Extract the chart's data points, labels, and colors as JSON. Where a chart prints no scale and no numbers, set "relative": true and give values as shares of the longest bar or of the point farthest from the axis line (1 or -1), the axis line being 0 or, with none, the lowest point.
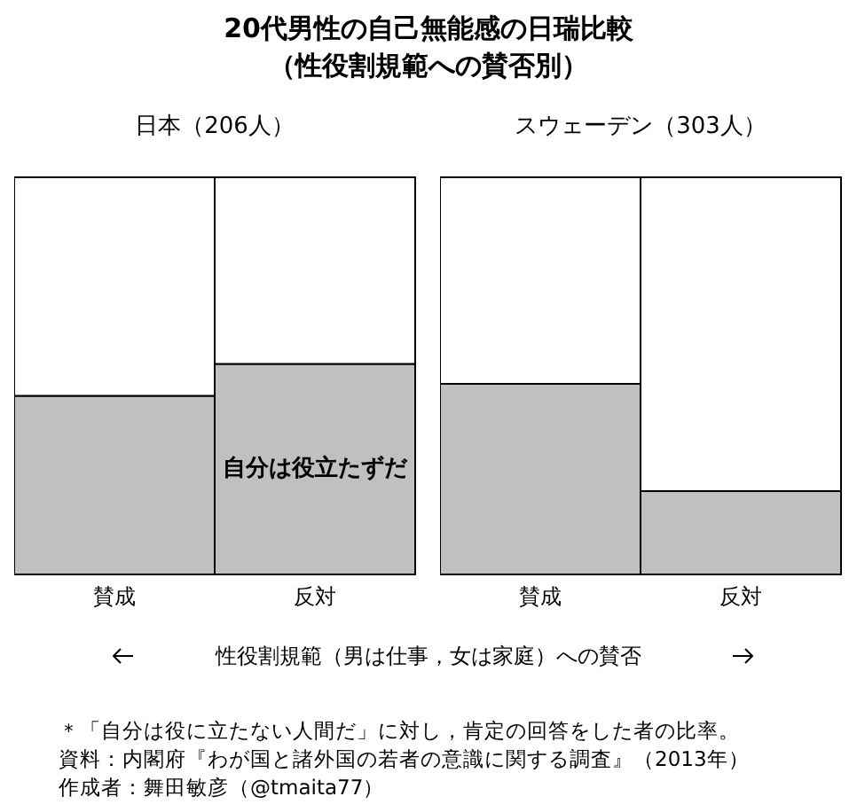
{
  "chart_data": [
    {
      "type": "other",
      "title": "20代男性の自己無能感の日瑞比較",
      "subtitle": "（性役割規範への賛否別）"
    },
    {
      "type": "bar",
      "title": "日本（206人）",
      "categories": [
        "賛成",
        "反対"
      ],
      "stacked": true,
      "relative": true,
      "series": [
        {
          "name": "自分は役立たずだ",
          "color": "#c0c0c0",
          "values": [
            0.45,
            0.53
          ]
        },
        {
          "color": "#ffffff",
          "values": [
            0.55,
            0.47
          ]
        }
      ]
    },
    {
      "type": "bar",
      "title": "スウェーデン（303人）",
      "categories": [
        "賛成",
        "反対"
      ],
      "stacked": true,
      "relative": true,
      "series": [
        {
          "color": "#c0c0c0",
          "values": [
            0.48,
            0.21
          ]
        },
        {
          "color": "#ffffff",
          "values": [
            0.52,
            0.79
          ]
        }
      ]
    },
    {
      "type": "other",
      "annotations": [
        "性役割規範（男は仕事，女は家庭）への賛否",
        "＊「自分は役に立たない人間だ」に対し，肯定の回答をした者の比率。",
        "資料：内閣府『わが国と諸外国の若者の意識に関する調査』（2013年）",
        "作成者：舞田敏彦（@tmaita77）"
      ]
    }
  ]
}
